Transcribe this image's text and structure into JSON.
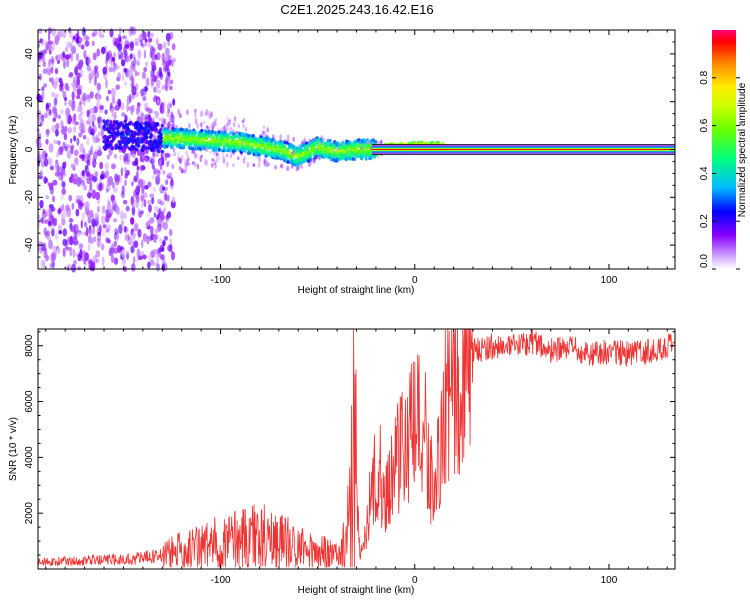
{
  "title": "C2E1.2025.243.16.42.E16",
  "chart_data": [
    {
      "type": "heatmap",
      "title": "C2E1.2025.243.16.42.E16",
      "xlabel": "Height of straight line (km)",
      "ylabel": "Frequency (Hz)",
      "xlim": [
        -194,
        134
      ],
      "ylim": [
        -50,
        50
      ],
      "xticks": [
        -100,
        0,
        100
      ],
      "yticks": [
        -40,
        -20,
        0,
        20,
        40
      ],
      "colorbar": {
        "label": "Normalized spectral amplitude",
        "range": [
          0,
          1
        ],
        "ticks": [
          "0.0",
          "0.2",
          "0.4",
          "0.6",
          "0.8"
        ]
      },
      "ridge": [
        {
          "x": -150,
          "freq": 6
        },
        {
          "x": -130,
          "freq": 5
        },
        {
          "x": -110,
          "freq": 4
        },
        {
          "x": -90,
          "freq": 3
        },
        {
          "x": -70,
          "freq": 0
        },
        {
          "x": -60,
          "freq": -3
        },
        {
          "x": -50,
          "freq": 1
        },
        {
          "x": -40,
          "freq": -1
        },
        {
          "x": -30,
          "freq": 0
        },
        {
          "x": -20,
          "freq": 0
        },
        {
          "x": 0,
          "freq": 1
        },
        {
          "x": 134,
          "freq": 0
        }
      ],
      "noise_region": {
        "x_from": -194,
        "x_to": -130,
        "freq_range": [
          -50,
          50
        ]
      },
      "stable_line": {
        "x_from": -22,
        "x_to": 134,
        "freq": 0
      }
    },
    {
      "type": "line",
      "xlabel": "Height of straight line (km)",
      "ylabel": "SNR (10 * v/v)",
      "xlim": [
        -194,
        134
      ],
      "ylim": [
        0,
        8600
      ],
      "xticks": [
        -100,
        0,
        100
      ],
      "yticks": [
        2000,
        4000,
        6000,
        8000
      ],
      "series": [
        {
          "name": "SNR",
          "color": "#ee3333",
          "x": [
            -194,
            -170,
            -150,
            -140,
            -130,
            -120,
            -110,
            -100,
            -90,
            -80,
            -70,
            -60,
            -50,
            -40,
            -36,
            -33,
            -31,
            -30,
            -28,
            -25,
            -22,
            -18,
            -15,
            -10,
            -5,
            0,
            5,
            10,
            15,
            20,
            25,
            30,
            40,
            50,
            60,
            70,
            80,
            90,
            100,
            110,
            120,
            134
          ],
          "values": [
            250,
            300,
            350,
            400,
            500,
            650,
            800,
            950,
            1100,
            1200,
            1000,
            800,
            600,
            500,
            900,
            2000,
            8400,
            2500,
            400,
            1500,
            3000,
            3500,
            2500,
            4000,
            4500,
            5000,
            5000,
            2500,
            5500,
            6500,
            7200,
            7800,
            8000,
            7900,
            8200,
            7800,
            7900,
            7700,
            7800,
            7700,
            7800,
            8000
          ]
        }
      ]
    }
  ]
}
